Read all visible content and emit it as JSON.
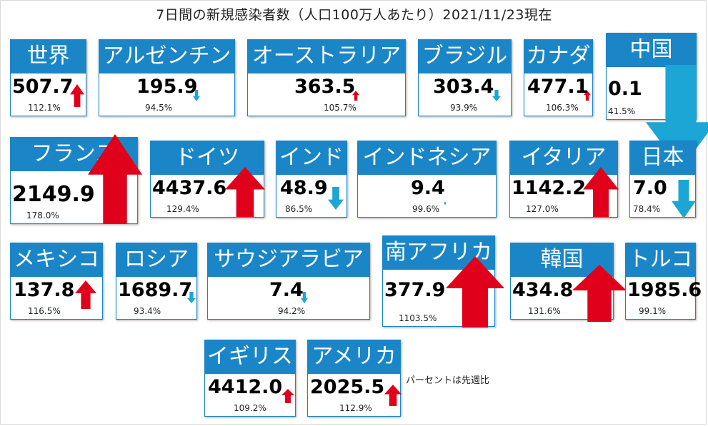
{
  "title": "7日間の新規感染者数（人口100万人あたり）2021/11/23現在",
  "note": "パーセントは先週比",
  "colors": {
    "header": "#1a86c8",
    "up": "#e0001b",
    "down": "#1ba6d6"
  },
  "chart_data": {
    "type": "table",
    "title": "7日間の新規感染者数（人口100万人あたり）2021/11/23現在",
    "unit": "人口100万人あたり",
    "entries": [
      {
        "name": "世界",
        "value": "507.7",
        "pct": "112.1%",
        "trend": "up"
      },
      {
        "name": "アルゼンチン",
        "value": "195.9",
        "pct": "94.5%",
        "trend": "down"
      },
      {
        "name": "オーストラリア",
        "value": "363.5",
        "pct": "105.7%",
        "trend": "up"
      },
      {
        "name": "ブラジル",
        "value": "303.4",
        "pct": "93.9%",
        "trend": "down"
      },
      {
        "name": "カナダ",
        "value": "477.1",
        "pct": "106.3%",
        "trend": "up"
      },
      {
        "name": "中国",
        "value": "0.1",
        "pct": "41.5%",
        "trend": "down"
      },
      {
        "name": "フランス",
        "value": "2149.9",
        "pct": "178.0%",
        "trend": "up"
      },
      {
        "name": "ドイツ",
        "value": "4437.6",
        "pct": "129.4%",
        "trend": "up"
      },
      {
        "name": "インド",
        "value": "48.9",
        "pct": "86.5%",
        "trend": "down"
      },
      {
        "name": "インドネシア",
        "value": "9.4",
        "pct": "99.6%",
        "trend": "down"
      },
      {
        "name": "イタリア",
        "value": "1142.2",
        "pct": "127.0%",
        "trend": "up"
      },
      {
        "name": "日本",
        "value": "7.0",
        "pct": "78.4%",
        "trend": "down"
      },
      {
        "name": "メキシコ",
        "value": "137.8",
        "pct": "116.5%",
        "trend": "up"
      },
      {
        "name": "ロシア",
        "value": "1689.7",
        "pct": "93.4%",
        "trend": "down"
      },
      {
        "name": "サウジアラビア",
        "value": "7.4",
        "pct": "94.2%",
        "trend": "down"
      },
      {
        "name": "南アフリカ",
        "value": "377.9",
        "pct": "1103.5%",
        "trend": "up"
      },
      {
        "name": "韓国",
        "value": "434.8",
        "pct": "131.6%",
        "trend": "up"
      },
      {
        "name": "トルコ",
        "value": "1985.6",
        "pct": "99.1%",
        "trend": "none"
      },
      {
        "name": "イギリス",
        "value": "4412.0",
        "pct": "109.2%",
        "trend": "up"
      },
      {
        "name": "アメリカ",
        "value": "2025.5",
        "pct": "112.9%",
        "trend": "up"
      }
    ]
  }
}
